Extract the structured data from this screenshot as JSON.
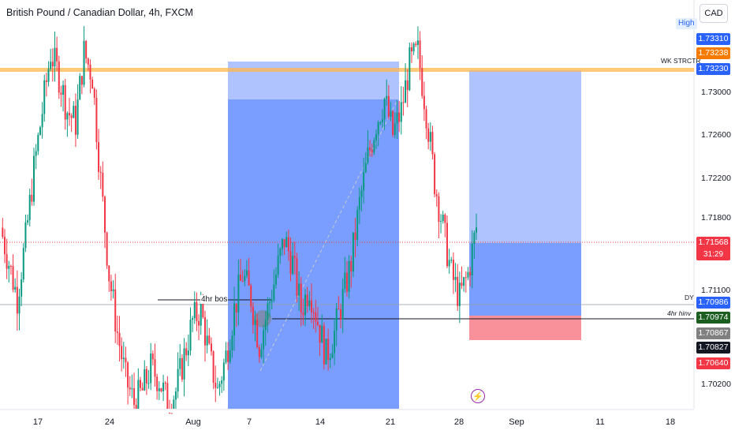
{
  "header": {
    "title": "British Pound / Canadian Dollar, 4h, FXCM"
  },
  "currency_button": "CAD",
  "high_badge": "High",
  "price_scale": {
    "ticks": [
      {
        "value": 1.73,
        "label": "1.73000"
      },
      {
        "value": 1.726,
        "label": "1.72600"
      },
      {
        "value": 1.722,
        "label": "1.72200"
      },
      {
        "value": 1.718,
        "label": "1.71800"
      },
      {
        "value": 1.711,
        "label": "1.71100"
      },
      {
        "value": 1.702,
        "label": "1.70200"
      }
    ],
    "level_badges": [
      {
        "value": 1.7331,
        "label": "1.73310",
        "color": "#2962ff"
      },
      {
        "value": 1.73238,
        "label": "1.73238",
        "color": "#f57c00"
      },
      {
        "value": 1.7323,
        "label": "1.73230",
        "color": "#2962ff"
      },
      {
        "value": 1.71568,
        "label": "1.71568",
        "color": "#f23645"
      },
      {
        "value": 1.70986,
        "label": "1.70986",
        "color": "#2962ff"
      },
      {
        "value": 1.70974,
        "label": "1.70974",
        "color": "#1b5e20"
      },
      {
        "value": 1.70867,
        "label": "1.70867",
        "color": "#808080"
      },
      {
        "value": 1.70827,
        "label": "1.70827",
        "color": "#131722"
      },
      {
        "value": 1.7064,
        "label": "1.70640",
        "color": "#f23645"
      }
    ],
    "countdown": "31:29"
  },
  "annotations": {
    "wk_strctr": "WK STRCTR",
    "dy": "DY",
    "hinv": "4hr hinv",
    "bos": "4hr bos"
  },
  "x_axis": {
    "labels": [
      "17",
      "24",
      "Aug",
      "7",
      "14",
      "21",
      "28",
      "Sep",
      "11",
      "18"
    ]
  },
  "colors": {
    "up": "#089981",
    "down": "#f23645",
    "box_blue": "#2962ff",
    "orange_level": "#ffb74d"
  },
  "chart_data": {
    "type": "candlestick",
    "symbol": "British Pound / Canadian Dollar",
    "timeframe": "4h",
    "source": "FXCM",
    "ylim": [
      1.7005,
      1.7355
    ],
    "x_dates": [
      "17",
      "24",
      "Aug",
      "7",
      "14",
      "21",
      "28",
      "Sep",
      "11",
      "18"
    ],
    "current_price": 1.71568,
    "candles_close": [
      1.716,
      1.713,
      1.71,
      1.715,
      1.721,
      1.726,
      1.731,
      1.729,
      1.726,
      1.725,
      1.731,
      1.729,
      1.72,
      1.712,
      1.707,
      1.703,
      1.701,
      1.702,
      1.704,
      1.703,
      1.701,
      1.702,
      1.705,
      1.708,
      1.709,
      1.705,
      1.702,
      1.705,
      1.709,
      1.712,
      1.71,
      1.706,
      1.709,
      1.712,
      1.715,
      1.713,
      1.709,
      1.711,
      1.708,
      1.705,
      1.707,
      1.71,
      1.713,
      1.718,
      1.722,
      1.725,
      1.727,
      1.724,
      1.726,
      1.73,
      1.731,
      1.726,
      1.72,
      1.716,
      1.712,
      1.71,
      1.712,
      1.716
    ],
    "levels": [
      {
        "name": "WK STRCTR",
        "value": 1.7323
      },
      {
        "name": "DY",
        "value": 1.70986
      },
      {
        "name": "4hr hinv",
        "value": 1.70974
      },
      {
        "name": "4hr bos",
        "value": 1.7104
      }
    ]
  }
}
